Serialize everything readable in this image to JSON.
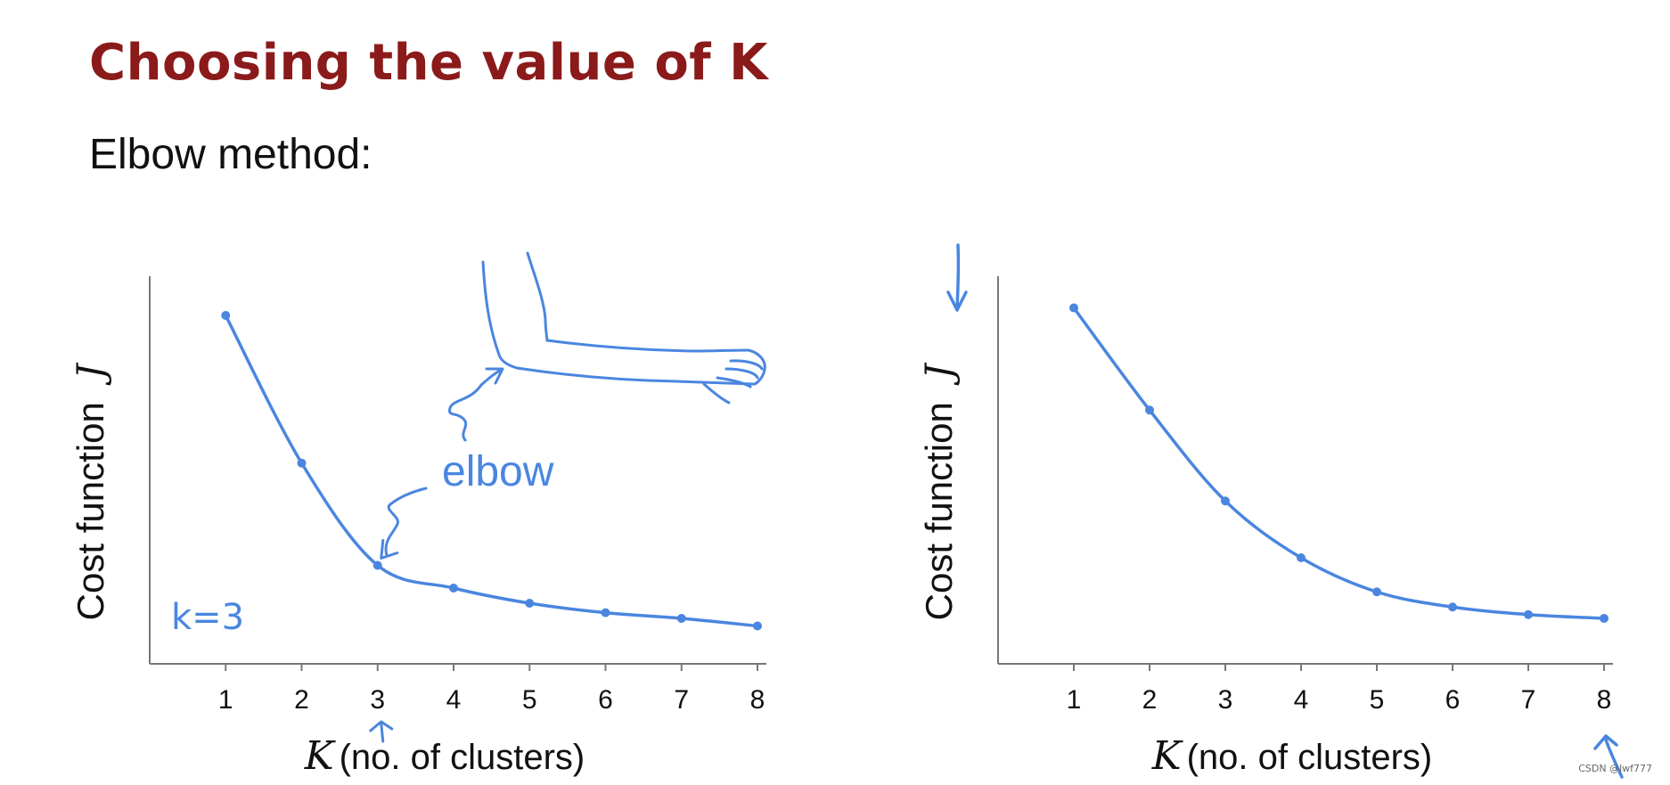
{
  "slide": {
    "title": "Choosing the value of K",
    "subtitle": "Elbow method:",
    "watermark": "CSDN @lwf777"
  },
  "chart_data": [
    {
      "type": "line",
      "ylabel": "Cost function",
      "ylabel_symbol": "J",
      "xlabel_symbol": "K",
      "xlabel": "(no. of clusters)",
      "x": [
        1,
        2,
        3,
        4,
        5,
        6,
        7,
        8
      ],
      "values": [
        9.2,
        5.3,
        2.6,
        2.0,
        1.6,
        1.35,
        1.2,
        1.0
      ],
      "ylim": [
        0,
        10
      ],
      "xlim": [
        0,
        8
      ],
      "grid": false,
      "annotations": {
        "elbow": "elbow",
        "k_choice": "k=3"
      },
      "color": "#4a86e0"
    },
    {
      "type": "line",
      "ylabel": "Cost function",
      "ylabel_symbol": "J",
      "xlabel_symbol": "K",
      "xlabel": "(no. of clusters)",
      "x": [
        1,
        2,
        3,
        4,
        5,
        6,
        7,
        8
      ],
      "values": [
        9.4,
        6.7,
        4.3,
        2.8,
        1.9,
        1.5,
        1.3,
        1.2
      ],
      "ylim": [
        0,
        10
      ],
      "xlim": [
        0,
        8
      ],
      "grid": false,
      "color": "#4a86e0"
    }
  ]
}
